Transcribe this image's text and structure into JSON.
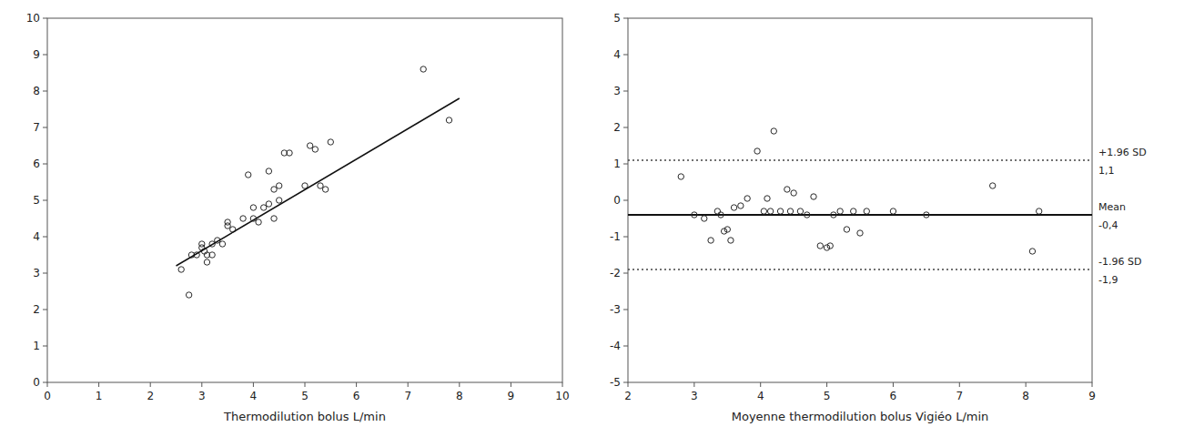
{
  "chart_data": [
    {
      "type": "scatter",
      "x_label": "Thermodilution bolus L/min",
      "xlim": [
        0,
        10
      ],
      "ylim": [
        0,
        10
      ],
      "xticks": [
        0,
        1,
        2,
        3,
        4,
        5,
        6,
        7,
        8,
        9,
        10
      ],
      "yticks": [
        0,
        1,
        2,
        3,
        4,
        5,
        6,
        7,
        8,
        9,
        10
      ],
      "grid": false,
      "series": [
        {
          "type": "scatter",
          "marker": "open-circle",
          "color": "#2a2a2a",
          "x": [
            2.6,
            2.75,
            2.8,
            2.9,
            3.0,
            3.0,
            3.05,
            3.1,
            3.1,
            3.2,
            3.2,
            3.3,
            3.4,
            3.5,
            3.5,
            3.6,
            3.8,
            3.9,
            4.0,
            4.0,
            4.1,
            4.2,
            4.3,
            4.3,
            4.4,
            4.4,
            4.5,
            4.5,
            4.6,
            4.7,
            5.0,
            5.1,
            5.2,
            5.3,
            5.4,
            5.5,
            7.3,
            7.8
          ],
          "values": [
            3.1,
            2.4,
            3.5,
            3.5,
            3.8,
            3.7,
            3.6,
            3.3,
            3.5,
            3.5,
            3.8,
            3.9,
            3.8,
            4.3,
            4.4,
            4.2,
            4.5,
            5.7,
            4.5,
            4.8,
            4.4,
            4.8,
            4.9,
            5.8,
            4.5,
            5.3,
            5.0,
            5.4,
            6.3,
            6.3,
            5.4,
            6.5,
            6.4,
            5.4,
            5.3,
            6.6,
            8.6,
            7.2
          ]
        },
        {
          "type": "line",
          "line_style": "solid",
          "color": "#111111",
          "x": [
            2.5,
            8.0
          ],
          "values": [
            3.2,
            7.8
          ]
        }
      ]
    },
    {
      "type": "scatter",
      "x_label": "Moyenne thermodilution bolus Vigiéo L/min",
      "xlim": [
        2,
        9
      ],
      "ylim": [
        -5,
        5
      ],
      "xticks": [
        2,
        3,
        4,
        5,
        6,
        7,
        8,
        9
      ],
      "yticks": [
        -5,
        -4,
        -3,
        -2,
        -1,
        0,
        1,
        2,
        3,
        4,
        5
      ],
      "grid": false,
      "series": [
        {
          "type": "scatter",
          "marker": "open-circle",
          "color": "#2a2a2a",
          "x": [
            2.8,
            3.0,
            3.15,
            3.25,
            3.35,
            3.4,
            3.45,
            3.5,
            3.55,
            3.6,
            3.7,
            3.8,
            3.95,
            4.05,
            4.1,
            4.15,
            4.2,
            4.3,
            4.4,
            4.45,
            4.5,
            4.6,
            4.7,
            4.8,
            4.9,
            5.0,
            5.05,
            5.1,
            5.2,
            5.3,
            5.4,
            5.5,
            5.6,
            6.0,
            6.5,
            7.5,
            8.1,
            8.2
          ],
          "values": [
            0.65,
            -0.4,
            -0.5,
            -1.1,
            -0.3,
            -0.4,
            -0.85,
            -0.8,
            -1.1,
            -0.2,
            -0.15,
            0.05,
            1.35,
            -0.3,
            0.05,
            -0.3,
            1.9,
            -0.3,
            0.3,
            -0.3,
            0.2,
            -0.3,
            -0.4,
            0.1,
            -1.25,
            -1.3,
            -1.25,
            -0.4,
            -0.3,
            -0.8,
            -0.3,
            -0.9,
            -0.3,
            -0.3,
            -0.4,
            0.4,
            -1.4,
            -0.3
          ]
        }
      ],
      "reference_lines": [
        {
          "y": 1.1,
          "label": "+1.96 SD",
          "value_label": "1,1",
          "color": "#444444",
          "line_style": "dotted"
        },
        {
          "y": -0.4,
          "label": "Mean",
          "value_label": "-0,4",
          "color": "#111111",
          "line_style": "solid"
        },
        {
          "y": -1.9,
          "label": "-1.96 SD",
          "value_label": "-1,9",
          "color": "#444444",
          "line_style": "dotted"
        }
      ]
    }
  ]
}
